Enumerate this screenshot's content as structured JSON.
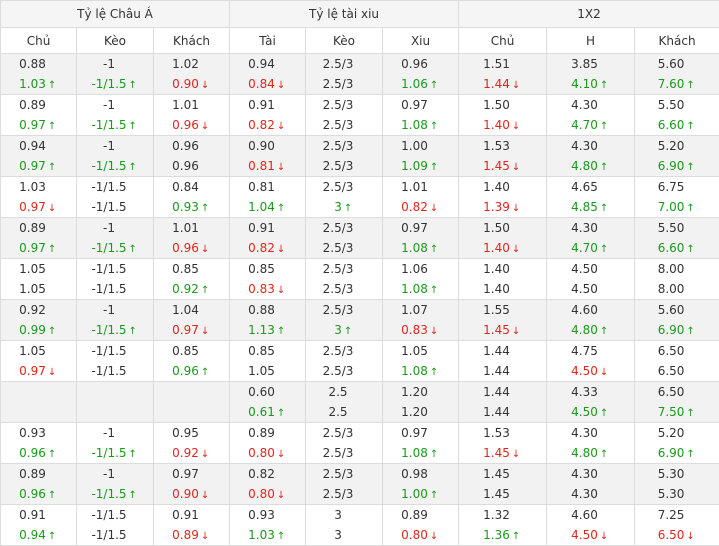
{
  "groups": [
    "Tỷ lệ Châu Á",
    "Tỷ lệ tài xiu",
    "1X2"
  ],
  "columns": [
    "Chủ",
    "Kèo",
    "Khách",
    "Tài",
    "Kèo",
    "Xiu",
    "Chủ",
    "H",
    "Khách"
  ],
  "colors": {
    "up": "#1a9a1a",
    "down": "#e0261b",
    "header_bg": "#f5f5f5",
    "alt_row_bg": "#f2f2f2"
  },
  "rows": [
    [
      [
        "0.88",
        "1.03",
        "up"
      ],
      [
        "-1",
        "-1/1.5",
        "up"
      ],
      [
        "1.02",
        "0.90",
        "down"
      ],
      [
        "0.94",
        "0.84",
        "down"
      ],
      [
        "2.5/3",
        "2.5/3",
        ""
      ],
      [
        "0.96",
        "1.06",
        "up"
      ],
      [
        "1.51",
        "1.44",
        "down"
      ],
      [
        "3.85",
        "4.10",
        "up"
      ],
      [
        "5.60",
        "7.60",
        "up"
      ]
    ],
    [
      [
        "0.89",
        "0.97",
        "up"
      ],
      [
        "-1",
        "-1/1.5",
        "up"
      ],
      [
        "1.01",
        "0.96",
        "down"
      ],
      [
        "0.91",
        "0.82",
        "down"
      ],
      [
        "2.5/3",
        "2.5/3",
        ""
      ],
      [
        "0.97",
        "1.08",
        "up"
      ],
      [
        "1.50",
        "1.40",
        "down"
      ],
      [
        "4.30",
        "4.70",
        "up"
      ],
      [
        "5.50",
        "6.60",
        "up"
      ]
    ],
    [
      [
        "0.94",
        "0.97",
        "up"
      ],
      [
        "-1",
        "-1/1.5",
        "up"
      ],
      [
        "0.96",
        "0.96",
        ""
      ],
      [
        "0.90",
        "0.81",
        "down"
      ],
      [
        "2.5/3",
        "2.5/3",
        ""
      ],
      [
        "1.00",
        "1.09",
        "up"
      ],
      [
        "1.53",
        "1.45",
        "down"
      ],
      [
        "4.30",
        "4.80",
        "up"
      ],
      [
        "5.20",
        "6.90",
        "up"
      ]
    ],
    [
      [
        "1.03",
        "0.97",
        "down"
      ],
      [
        "-1/1.5",
        "-1/1.5",
        ""
      ],
      [
        "0.84",
        "0.93",
        "up"
      ],
      [
        "0.81",
        "1.04",
        "up"
      ],
      [
        "2.5/3",
        "3",
        "up"
      ],
      [
        "1.01",
        "0.82",
        "down"
      ],
      [
        "1.40",
        "1.39",
        "down"
      ],
      [
        "4.65",
        "4.85",
        "up"
      ],
      [
        "6.75",
        "7.00",
        "up"
      ]
    ],
    [
      [
        "0.89",
        "0.97",
        "up"
      ],
      [
        "-1",
        "-1/1.5",
        "up"
      ],
      [
        "1.01",
        "0.96",
        "down"
      ],
      [
        "0.91",
        "0.82",
        "down"
      ],
      [
        "2.5/3",
        "2.5/3",
        ""
      ],
      [
        "0.97",
        "1.08",
        "up"
      ],
      [
        "1.50",
        "1.40",
        "down"
      ],
      [
        "4.30",
        "4.70",
        "up"
      ],
      [
        "5.50",
        "6.60",
        "up"
      ]
    ],
    [
      [
        "1.05",
        "1.05",
        ""
      ],
      [
        "-1/1.5",
        "-1/1.5",
        ""
      ],
      [
        "0.85",
        "0.92",
        "up"
      ],
      [
        "0.85",
        "0.83",
        "down"
      ],
      [
        "2.5/3",
        "2.5/3",
        ""
      ],
      [
        "1.06",
        "1.08",
        "up"
      ],
      [
        "1.40",
        "1.40",
        ""
      ],
      [
        "4.50",
        "4.50",
        ""
      ],
      [
        "8.00",
        "8.00",
        ""
      ]
    ],
    [
      [
        "0.92",
        "0.99",
        "up"
      ],
      [
        "-1",
        "-1/1.5",
        "up"
      ],
      [
        "1.04",
        "0.97",
        "down"
      ],
      [
        "0.88",
        "1.13",
        "up"
      ],
      [
        "2.5/3",
        "3",
        "up"
      ],
      [
        "1.07",
        "0.83",
        "down"
      ],
      [
        "1.55",
        "1.45",
        "down"
      ],
      [
        "4.60",
        "4.80",
        "up"
      ],
      [
        "5.60",
        "6.90",
        "up"
      ]
    ],
    [
      [
        "1.05",
        "0.97",
        "down"
      ],
      [
        "-1/1.5",
        "-1/1.5",
        ""
      ],
      [
        "0.85",
        "0.96",
        "up"
      ],
      [
        "0.85",
        "1.05",
        ""
      ],
      [
        "2.5/3",
        "2.5/3",
        ""
      ],
      [
        "1.05",
        "1.08",
        "up"
      ],
      [
        "1.44",
        "1.44",
        ""
      ],
      [
        "4.75",
        "4.50",
        "down"
      ],
      [
        "6.50",
        "6.50",
        ""
      ]
    ],
    [
      [
        "",
        "",
        ""
      ],
      [
        "",
        "",
        ""
      ],
      [
        "",
        "",
        ""
      ],
      [
        "0.60",
        "0.61",
        "up"
      ],
      [
        "2.5",
        "2.5",
        ""
      ],
      [
        "1.20",
        "1.20",
        ""
      ],
      [
        "1.44",
        "1.44",
        ""
      ],
      [
        "4.33",
        "4.50",
        "up"
      ],
      [
        "6.50",
        "7.50",
        "up"
      ]
    ],
    [
      [
        "0.93",
        "0.96",
        "up"
      ],
      [
        "-1",
        "-1/1.5",
        "up"
      ],
      [
        "0.95",
        "0.92",
        "down"
      ],
      [
        "0.89",
        "0.80",
        "down"
      ],
      [
        "2.5/3",
        "2.5/3",
        ""
      ],
      [
        "0.97",
        "1.08",
        "up"
      ],
      [
        "1.53",
        "1.45",
        "down"
      ],
      [
        "4.30",
        "4.80",
        "up"
      ],
      [
        "5.20",
        "6.90",
        "up"
      ]
    ],
    [
      [
        "0.89",
        "0.96",
        "up"
      ],
      [
        "-1",
        "-1/1.5",
        "up"
      ],
      [
        "0.97",
        "0.90",
        "down"
      ],
      [
        "0.82",
        "0.80",
        "down"
      ],
      [
        "2.5/3",
        "2.5/3",
        ""
      ],
      [
        "0.98",
        "1.00",
        "up"
      ],
      [
        "1.45",
        "1.45",
        ""
      ],
      [
        "4.30",
        "4.30",
        ""
      ],
      [
        "5.30",
        "5.30",
        ""
      ]
    ],
    [
      [
        "0.91",
        "0.94",
        "up"
      ],
      [
        "-1/1.5",
        "-1/1.5",
        ""
      ],
      [
        "0.91",
        "0.89",
        "down"
      ],
      [
        "0.93",
        "1.03",
        "up"
      ],
      [
        "3",
        "3",
        ""
      ],
      [
        "0.89",
        "0.80",
        "down"
      ],
      [
        "1.32",
        "1.36",
        "up"
      ],
      [
        "4.60",
        "4.50",
        "down"
      ],
      [
        "7.25",
        "6.50",
        "down"
      ]
    ]
  ]
}
